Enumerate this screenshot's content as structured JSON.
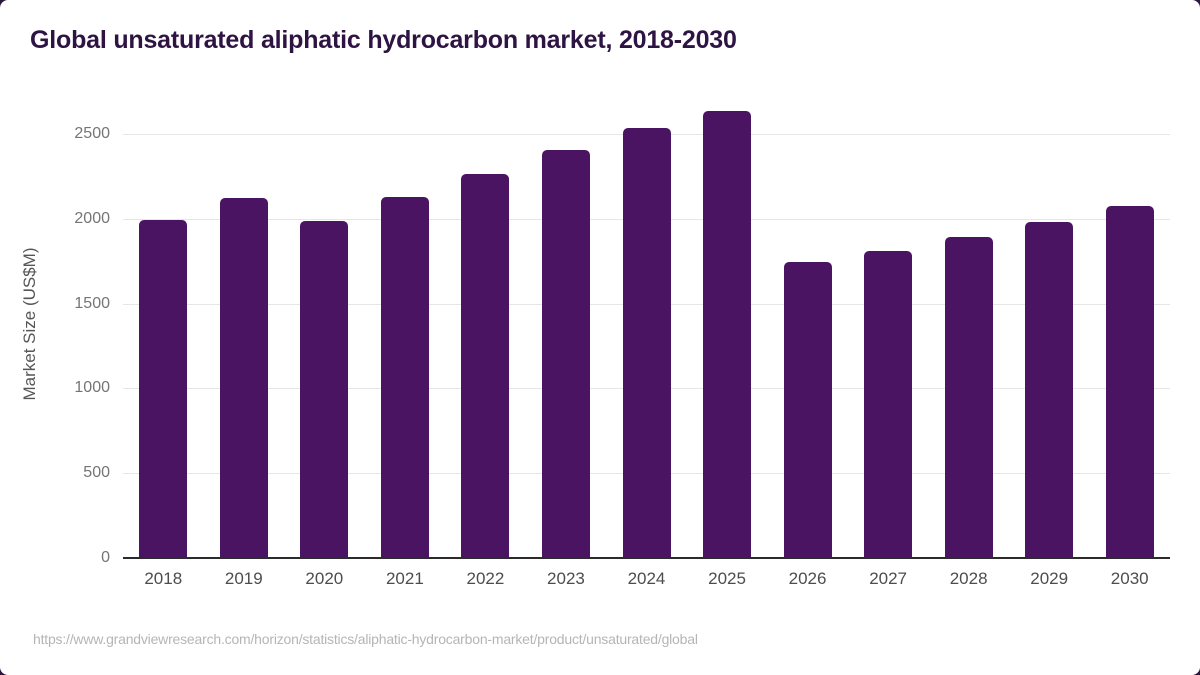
{
  "page": {
    "source_url": "https://www.grandviewresearch.com/horizon/statistics/aliphatic-hydrocarbon-market/product/unsaturated/global"
  },
  "chart_data": {
    "type": "bar",
    "title": "Global unsaturated aliphatic hydrocarbon market, 2018-2030",
    "xlabel": "",
    "ylabel": "Market Size (US$M)",
    "categories": [
      "2018",
      "2019",
      "2020",
      "2021",
      "2022",
      "2023",
      "2024",
      "2025",
      "2026",
      "2027",
      "2028",
      "2029",
      "2030"
    ],
    "values": [
      1990,
      2120,
      1985,
      2130,
      2265,
      2405,
      2535,
      2635,
      1745,
      1810,
      1895,
      1980,
      2075
    ],
    "ylim": [
      0,
      2700
    ],
    "yticks": [
      0,
      500,
      1000,
      1500,
      2000,
      2500
    ],
    "grid": true,
    "legend": false,
    "colors": {
      "bar": "#4a1462",
      "title": "#2e1443",
      "gridline": "#e6e6e6",
      "axis_line": "#2b2b2b",
      "y_tick_text": "#757575",
      "x_tick_text": "#4d4d4d",
      "source_text": "#b5b5b5",
      "card_background": "#ffffff",
      "page_background": "#2a1640"
    }
  }
}
